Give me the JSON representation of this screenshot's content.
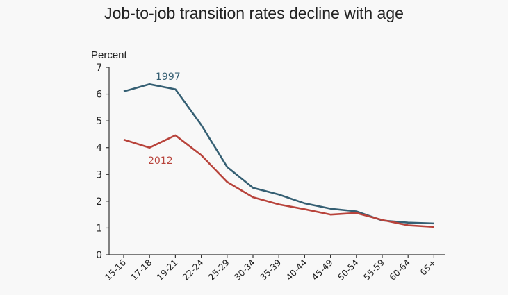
{
  "chart_data": {
    "type": "line",
    "title": "Job-to-job transition rates decline with age",
    "xlabel": "",
    "ylabel": "Percent",
    "categories": [
      "15-16",
      "17-18",
      "19-21",
      "22-24",
      "25-29",
      "30-34",
      "35-39",
      "40-44",
      "45-49",
      "50-54",
      "55-59",
      "60-64",
      "65+"
    ],
    "ylim": [
      0,
      7
    ],
    "yticks": [
      "0",
      "1",
      "2",
      "3",
      "4",
      "5",
      "6",
      "7"
    ],
    "grid": false,
    "series": [
      {
        "name": "1997",
        "color": "#355f73",
        "values": [
          6.1,
          6.37,
          6.18,
          4.85,
          3.28,
          2.5,
          2.25,
          1.92,
          1.72,
          1.62,
          1.28,
          1.2,
          1.17
        ]
      },
      {
        "name": "2012",
        "color": "#b8433b",
        "values": [
          4.3,
          4.0,
          4.46,
          3.72,
          2.72,
          2.15,
          1.88,
          1.7,
          1.5,
          1.56,
          1.3,
          1.1,
          1.04
        ]
      }
    ]
  }
}
